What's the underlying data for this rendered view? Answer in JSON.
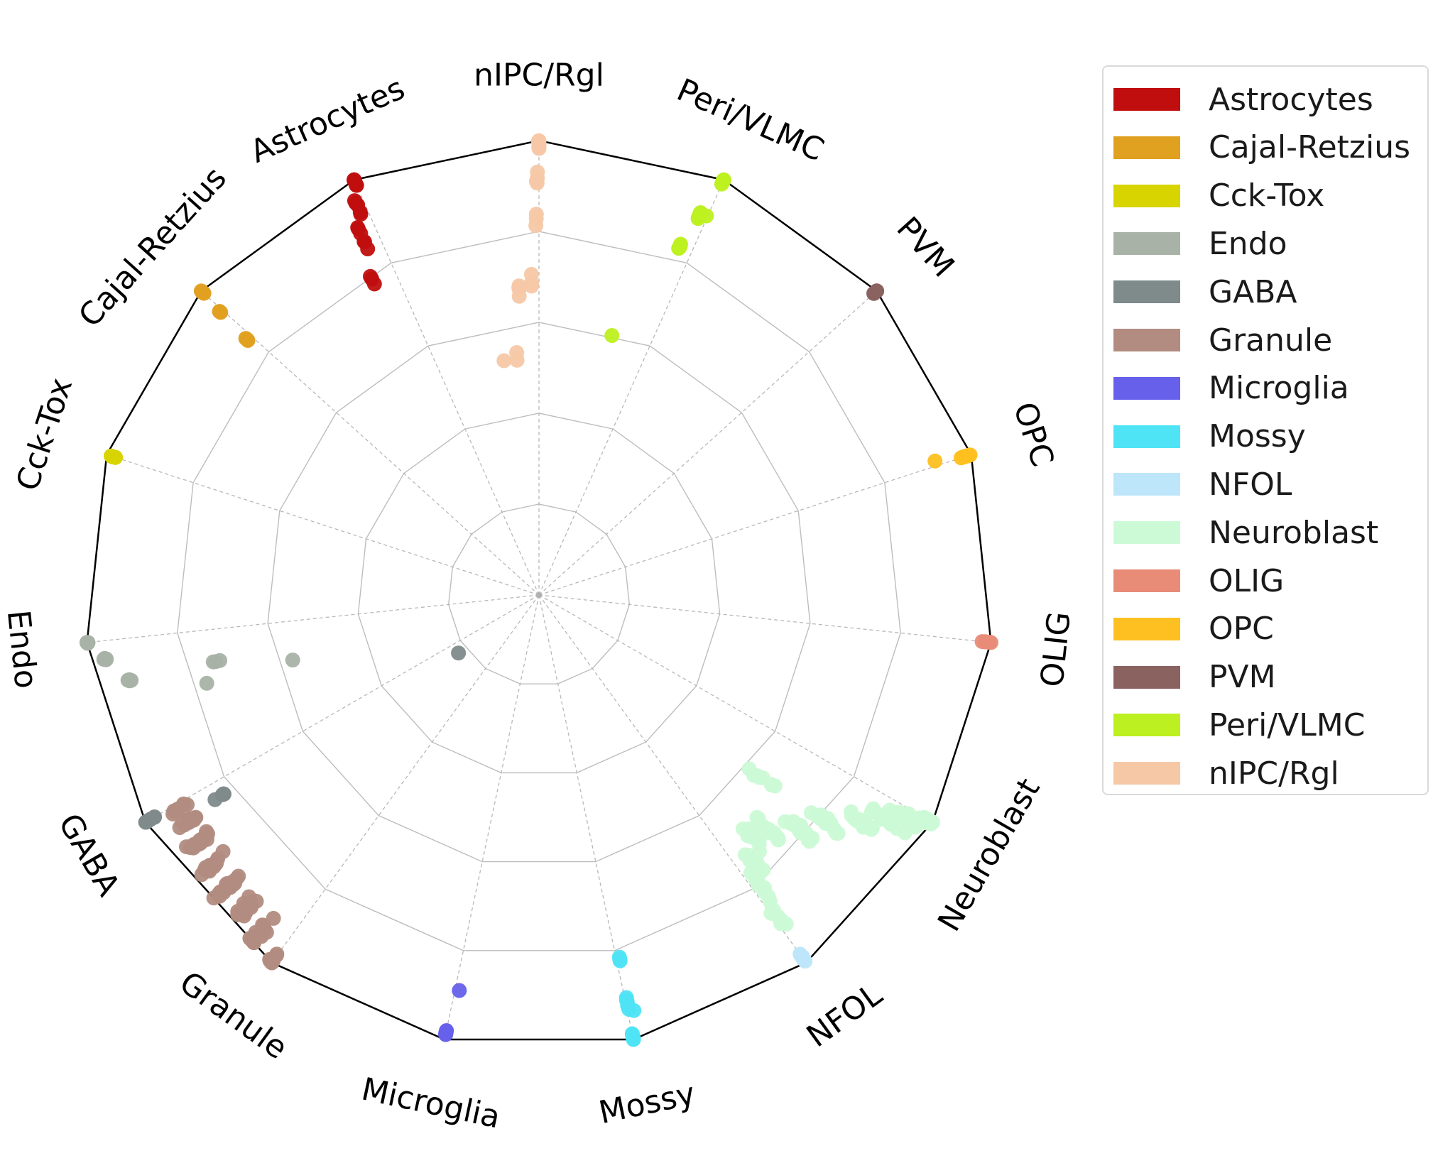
{
  "chart_data": {
    "type": "scatter",
    "subtype": "radar-polygon-projection",
    "title": "",
    "vertices": [
      "nIPC/Rgl",
      "Peri/VLMC",
      "PVM",
      "OPC",
      "OLIG",
      "Neuroblast",
      "NFOL",
      "Mossy",
      "Microglia",
      "Granule",
      "GABA",
      "Endo",
      "Cck-Tox",
      "Cajal-Retzius",
      "Astrocytes"
    ],
    "radial_range": [
      0,
      1
    ],
    "radial_grid": [
      0.2,
      0.4,
      0.6,
      0.8,
      1.0
    ],
    "grid": true,
    "legend_position": "right, outside",
    "legend": [
      {
        "name": "Astrocytes",
        "color": "#c00e0e"
      },
      {
        "name": "Cajal-Retzius",
        "color": "#e0a020"
      },
      {
        "name": "Cck-Tox",
        "color": "#d8d400"
      },
      {
        "name": "Endo",
        "color": "#a8b2a6"
      },
      {
        "name": "GABA",
        "color": "#7f8a8a"
      },
      {
        "name": "Granule",
        "color": "#b28c80"
      },
      {
        "name": "Microglia",
        "color": "#6660ea"
      },
      {
        "name": "Mossy",
        "color": "#4ee4f6"
      },
      {
        "name": "NFOL",
        "color": "#bde6fa"
      },
      {
        "name": "Neuroblast",
        "color": "#ccfad6"
      },
      {
        "name": "OLIG",
        "color": "#e88c78"
      },
      {
        "name": "OPC",
        "color": "#fdc020"
      },
      {
        "name": "PVM",
        "color": "#8a6260"
      },
      {
        "name": "Peri/VLMC",
        "color": "#bdf020"
      },
      {
        "name": "nIPC/Rgl",
        "color": "#f6c8a6"
      }
    ],
    "series": [
      {
        "name": "Astrocytes",
        "clusters": [
          {
            "t": 0.0,
            "r": 1.0,
            "n": 10,
            "spread": 0.015
          },
          {
            "t": 0.12,
            "r": 0.98,
            "n": 6,
            "spread": 0.015
          },
          {
            "t": 0.25,
            "r": 0.95,
            "n": 6,
            "spread": 0.02
          },
          {
            "t": 0.4,
            "r": 0.9,
            "n": 3,
            "spread": 0.02
          }
        ]
      },
      {
        "name": "Cajal-Retzius",
        "clusters": [
          {
            "t": 0.0,
            "r": 1.0,
            "n": 6,
            "spread": 0.012
          },
          {
            "t": 0.05,
            "r": 0.96,
            "n": 3,
            "spread": 0.01
          },
          {
            "t": 0.09,
            "r": 0.9,
            "n": 3,
            "spread": 0.01
          }
        ]
      },
      {
        "name": "Cck-Tox",
        "clusters": [
          {
            "t": 0.0,
            "r": 0.99,
            "n": 6,
            "spread": 0.01
          }
        ]
      },
      {
        "name": "Endo",
        "clusters": [
          {
            "t": 0.0,
            "r": 1.0,
            "n": 10,
            "spread": 0.012
          },
          {
            "t": 0.12,
            "r": 0.98,
            "n": 10,
            "spread": 0.01
          },
          {
            "t": 0.28,
            "r": 0.95,
            "n": 6,
            "spread": 0.01
          },
          {
            "t": 0.55,
            "r": 0.88,
            "n": 3,
            "spread": 0.015
          },
          {
            "t": 0.78,
            "r": 0.75,
            "n": 1,
            "spread": 0.0
          },
          {
            "t": 0.35,
            "r": 0.45,
            "n": 1,
            "spread": 0.0
          }
        ]
      },
      {
        "name": "GABA",
        "clusters": [
          {
            "t": 0.0,
            "r": 0.99,
            "n": 10,
            "spread": 0.012
          },
          {
            "t": 0.25,
            "r": 0.9,
            "n": 4,
            "spread": 0.02
          },
          {
            "t": 0.5,
            "r": 0.3,
            "n": 1,
            "spread": 0.0
          }
        ]
      },
      {
        "name": "Granule",
        "clusters": [
          {
            "t": 0.0,
            "r": 1.0,
            "n": 24,
            "spread": 0.03
          },
          {
            "t": 0.15,
            "r": 0.98,
            "n": 20,
            "spread": 0.04
          },
          {
            "t": 0.3,
            "r": 0.97,
            "n": 20,
            "spread": 0.035
          },
          {
            "t": 0.45,
            "r": 0.96,
            "n": 20,
            "spread": 0.035
          },
          {
            "t": 0.6,
            "r": 0.95,
            "n": 18,
            "spread": 0.03
          },
          {
            "t": 0.75,
            "r": 0.94,
            "n": 18,
            "spread": 0.03
          },
          {
            "t": 0.88,
            "r": 0.93,
            "n": 14,
            "spread": 0.025
          },
          {
            "t": 0.97,
            "r": 0.92,
            "n": 8,
            "spread": 0.02
          }
        ]
      },
      {
        "name": "Microglia",
        "clusters": [
          {
            "t": 0.0,
            "r": 0.99,
            "n": 8,
            "spread": 0.006
          },
          {
            "t": 0.07,
            "r": 0.92,
            "n": 1,
            "spread": 0.0
          }
        ]
      },
      {
        "name": "Mossy",
        "clusters": [
          {
            "t": 0.0,
            "r": 1.0,
            "n": 8,
            "spread": 0.01
          },
          {
            "t": 0.03,
            "r": 0.94,
            "n": 6,
            "spread": 0.015
          },
          {
            "t": 0.06,
            "r": 0.86,
            "n": 3,
            "spread": 0.01
          },
          {
            "t": 0.1,
            "r": 0.97,
            "n": 1,
            "spread": 0.0
          }
        ]
      },
      {
        "name": "NFOL",
        "clusters": [
          {
            "t": 0.0,
            "r": 0.99,
            "n": 8,
            "spread": 0.012
          }
        ]
      },
      {
        "name": "Neuroblast",
        "clusters": [
          {
            "t": 0.0,
            "r": 1.0,
            "n": 30,
            "spread": 0.03
          },
          {
            "t": 0.05,
            "r": 0.96,
            "n": 30,
            "spread": 0.035
          },
          {
            "t": 0.12,
            "r": 0.92,
            "n": 22,
            "spread": 0.04
          },
          {
            "t": 0.22,
            "r": 0.88,
            "n": 18,
            "spread": 0.04
          },
          {
            "t": 0.35,
            "r": 0.82,
            "n": 16,
            "spread": 0.04
          },
          {
            "t": 0.5,
            "r": 0.78,
            "n": 16,
            "spread": 0.04
          },
          {
            "t": 0.65,
            "r": 0.74,
            "n": 14,
            "spread": 0.04
          },
          {
            "t": 0.78,
            "r": 0.72,
            "n": 12,
            "spread": 0.04
          },
          {
            "t": 0.88,
            "r": 0.76,
            "n": 10,
            "spread": 0.04
          },
          {
            "t": 0.94,
            "r": 0.82,
            "n": 10,
            "spread": 0.04
          },
          {
            "t": 0.98,
            "r": 0.88,
            "n": 8,
            "spread": 0.03
          },
          {
            "t": 0.4,
            "r": 0.65,
            "n": 8,
            "spread": 0.04
          }
        ]
      },
      {
        "name": "OLIG",
        "clusters": [
          {
            "t": 0.0,
            "r": 0.99,
            "n": 6,
            "spread": 0.01
          }
        ]
      },
      {
        "name": "OPC",
        "clusters": [
          {
            "t": 0.0,
            "r": 0.99,
            "n": 12,
            "spread": 0.01
          },
          {
            "t": 0.08,
            "r": 0.95,
            "n": 1,
            "spread": 0.0
          }
        ]
      },
      {
        "name": "PVM",
        "clusters": [
          {
            "t": 0.0,
            "r": 1.0,
            "n": 5,
            "spread": 0.006
          }
        ]
      },
      {
        "name": "Peri/VLMC",
        "clusters": [
          {
            "t": 0.0,
            "r": 1.0,
            "n": 6,
            "spread": 0.01
          },
          {
            "t": 0.12,
            "r": 0.95,
            "n": 8,
            "spread": 0.012
          },
          {
            "t": 0.22,
            "r": 0.9,
            "n": 4,
            "spread": 0.01
          },
          {
            "t": 0.75,
            "r": 0.78,
            "n": 1,
            "spread": 0.0
          },
          {
            "t": 0.02,
            "r": 0.93,
            "n": 1,
            "spread": 0.0
          }
        ]
      },
      {
        "name": "nIPC/Rgl",
        "clusters": [
          {
            "t": 0.0,
            "r": 1.0,
            "n": 10,
            "spread": 0.015
          },
          {
            "t": 0.03,
            "r": 0.94,
            "n": 5,
            "spread": 0.015
          },
          {
            "t": 0.05,
            "r": 0.86,
            "n": 3,
            "spread": 0.015
          },
          {
            "t": 0.15,
            "r": 0.76,
            "n": 3,
            "spread": 0.015
          },
          {
            "t": 0.38,
            "r": 0.78,
            "n": 4,
            "spread": 0.02
          },
          {
            "t": 0.5,
            "r": 0.66,
            "n": 2,
            "spread": 0.015
          },
          {
            "t": 0.75,
            "r": 0.7,
            "n": 1,
            "spread": 0.0
          }
        ]
      }
    ]
  }
}
